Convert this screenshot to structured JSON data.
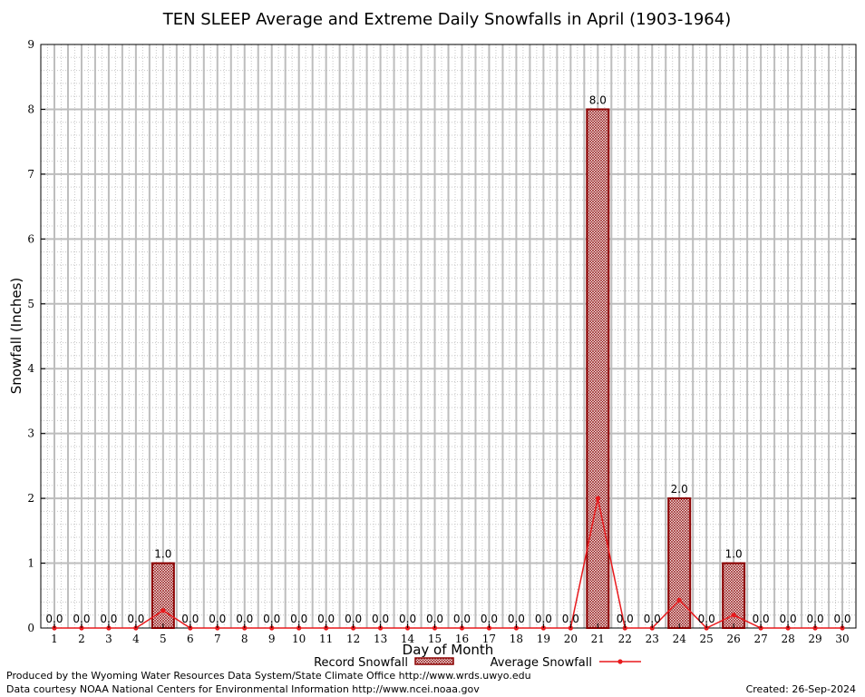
{
  "chart_data": {
    "type": "bar",
    "title": "TEN SLEEP Average and Extreme Daily Snowfalls in April (1903-1964)",
    "xlabel": "Day of Month",
    "ylabel": "Snowfall (Inches)",
    "ylim": [
      0,
      9
    ],
    "yticks": [
      "0",
      "1",
      "2",
      "3",
      "4",
      "5",
      "6",
      "7",
      "8",
      "9"
    ],
    "categories": [
      "1",
      "2",
      "3",
      "4",
      "5",
      "6",
      "7",
      "8",
      "9",
      "10",
      "11",
      "12",
      "13",
      "14",
      "15",
      "16",
      "17",
      "18",
      "19",
      "20",
      "21",
      "22",
      "23",
      "24",
      "25",
      "26",
      "27",
      "28",
      "29",
      "30"
    ],
    "series": [
      {
        "name": "Record Snowfall",
        "kind": "bar",
        "color": "#8b0000",
        "values": [
          0,
          0,
          0,
          0,
          1,
          0,
          0,
          0,
          0,
          0,
          0,
          0,
          0,
          0,
          0,
          0,
          0,
          0,
          0,
          0,
          8,
          0,
          0,
          2,
          0,
          1,
          0,
          0,
          0,
          0
        ],
        "labels": [
          "0.0",
          "0.0",
          "0.0",
          "0.0",
          "1.0",
          "0.0",
          "0.0",
          "0.0",
          "0.0",
          "0.0",
          "0.0",
          "0.0",
          "0.0",
          "0.0",
          "0.0",
          "0.0",
          "0.0",
          "0.0",
          "0.0",
          "0.0",
          "8.0",
          "0.0",
          "0.0",
          "2.0",
          "0.0",
          "1.0",
          "0.0",
          "0.0",
          "0.0",
          "0.0"
        ]
      },
      {
        "name": "Average Snowfall",
        "kind": "line",
        "color": "#e8191c",
        "values": [
          0,
          0,
          0,
          0,
          0.27,
          0,
          0,
          0,
          0,
          0,
          0,
          0,
          0,
          0,
          0,
          0,
          0,
          0,
          0,
          0,
          2.0,
          0,
          0,
          0.43,
          0,
          0.2,
          0,
          0,
          0,
          0
        ]
      }
    ],
    "grid": true,
    "legend": "bottom"
  },
  "footer": {
    "produced": "Produced by the Wyoming Water Resources Data System/State Climate Office http://www.wrds.uwyo.edu",
    "courtesy": "Data courtesy NOAA National Centers for Environmental Information http://www.ncei.noaa.gov",
    "created": "Created: 26-Sep-2024"
  }
}
